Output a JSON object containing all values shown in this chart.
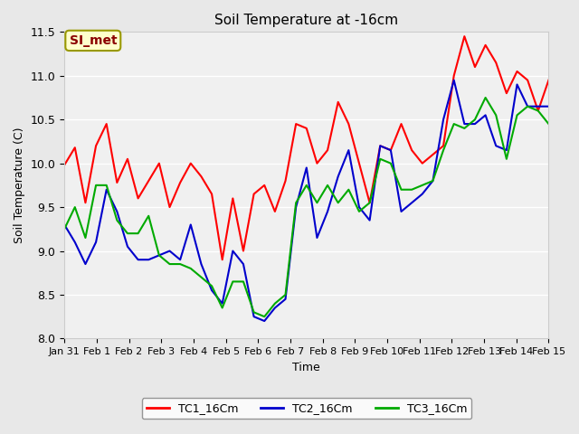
{
  "title": "Soil Temperature at -16cm",
  "xlabel": "Time",
  "ylabel": "Soil Temperature (C)",
  "ylim": [
    8.0,
    11.5
  ],
  "xlim": [
    0,
    15
  ],
  "xtick_labels": [
    "Jan 31",
    "Feb 1",
    "Feb 2",
    "Feb 3",
    "Feb 4",
    "Feb 5",
    "Feb 6",
    "Feb 7",
    "Feb 8",
    "Feb 9",
    "Feb 10",
    "Feb 11",
    "Feb 12",
    "Feb 13",
    "Feb 14",
    "Feb 15"
  ],
  "xtick_positions": [
    0,
    1,
    2,
    3,
    4,
    5,
    6,
    7,
    8,
    9,
    10,
    11,
    12,
    13,
    14,
    15
  ],
  "ytick_labels": [
    "8.0",
    "8.5",
    "9.0",
    "9.5",
    "10.0",
    "10.5",
    "11.0",
    "11.5"
  ],
  "ytick_positions": [
    8.0,
    8.5,
    9.0,
    9.5,
    10.0,
    10.5,
    11.0,
    11.5
  ],
  "bg_color": "#e8e8e8",
  "plot_bg_color": "#f0f0f0",
  "annotation_text": "SI_met",
  "annotation_color": "#8b0000",
  "annotation_bg": "#ffffcc",
  "legend_labels": [
    "TC1_16Cm",
    "TC2_16Cm",
    "TC3_16Cm"
  ],
  "line_colors": [
    "#ff0000",
    "#0000cc",
    "#00aa00"
  ],
  "line_width": 1.5,
  "tc1": [
    9.98,
    10.18,
    9.55,
    10.2,
    10.45,
    9.78,
    10.05,
    9.6,
    9.8,
    10.0,
    9.5,
    9.78,
    10.0,
    9.85,
    9.65,
    8.9,
    9.6,
    9.0,
    9.65,
    9.75,
    9.45,
    9.8,
    10.45,
    10.4,
    10.0,
    10.15,
    10.7,
    10.45,
    10.0,
    9.55,
    10.2,
    10.15,
    10.45,
    10.15,
    10.0,
    10.1,
    10.2,
    11.0,
    11.45,
    11.1,
    11.35,
    11.15,
    10.8,
    11.05,
    10.95,
    10.6,
    10.95
  ],
  "tc2": [
    9.3,
    9.1,
    8.85,
    9.1,
    9.7,
    9.45,
    9.05,
    8.9,
    8.9,
    8.95,
    9.0,
    8.9,
    9.3,
    8.85,
    8.55,
    8.4,
    9.0,
    8.85,
    8.25,
    8.2,
    8.35,
    8.45,
    9.5,
    9.95,
    9.15,
    9.45,
    9.85,
    10.15,
    9.5,
    9.35,
    10.2,
    10.15,
    9.45,
    9.55,
    9.65,
    9.8,
    10.5,
    10.95,
    10.45,
    10.45,
    10.55,
    10.2,
    10.15,
    10.9,
    10.65,
    10.65,
    10.65
  ],
  "tc3": [
    9.25,
    9.5,
    9.15,
    9.75,
    9.75,
    9.35,
    9.2,
    9.2,
    9.4,
    8.95,
    8.85,
    8.85,
    8.8,
    8.7,
    8.6,
    8.35,
    8.65,
    8.65,
    8.3,
    8.25,
    8.4,
    8.5,
    9.55,
    9.75,
    9.55,
    9.75,
    9.55,
    9.7,
    9.45,
    9.55,
    10.05,
    10.0,
    9.7,
    9.7,
    9.75,
    9.8,
    10.15,
    10.45,
    10.4,
    10.5,
    10.75,
    10.55,
    10.05,
    10.55,
    10.65,
    10.6,
    10.45
  ]
}
